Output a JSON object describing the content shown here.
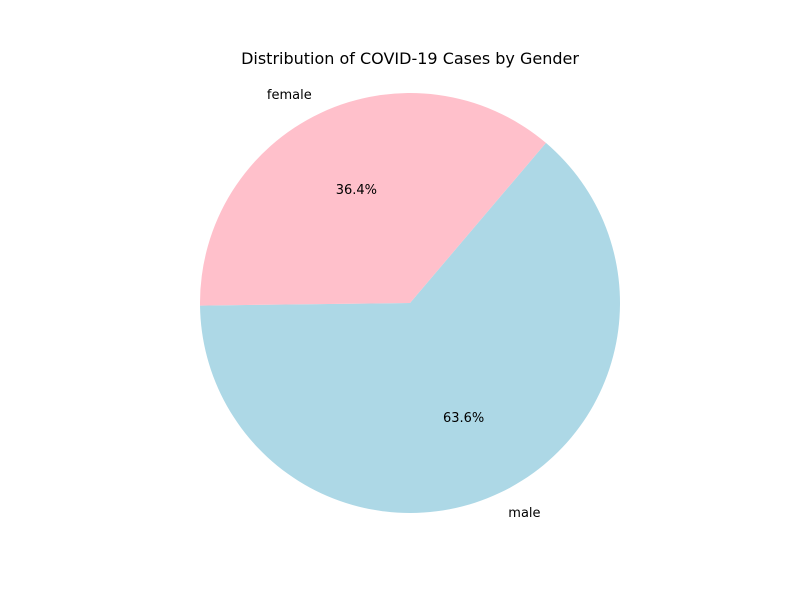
{
  "chart_data": {
    "type": "pie",
    "title": "Distribution of COVID-19 Cases by Gender",
    "categories": [
      "male",
      "female"
    ],
    "values": [
      63.6,
      36.4
    ],
    "value_labels": [
      "63.6%",
      "36.4%"
    ],
    "colors": [
      "#add8e6",
      "#ffc0cb"
    ],
    "start_angle_deg": 180.7,
    "direction": "counterclockwise",
    "legend": "none"
  }
}
